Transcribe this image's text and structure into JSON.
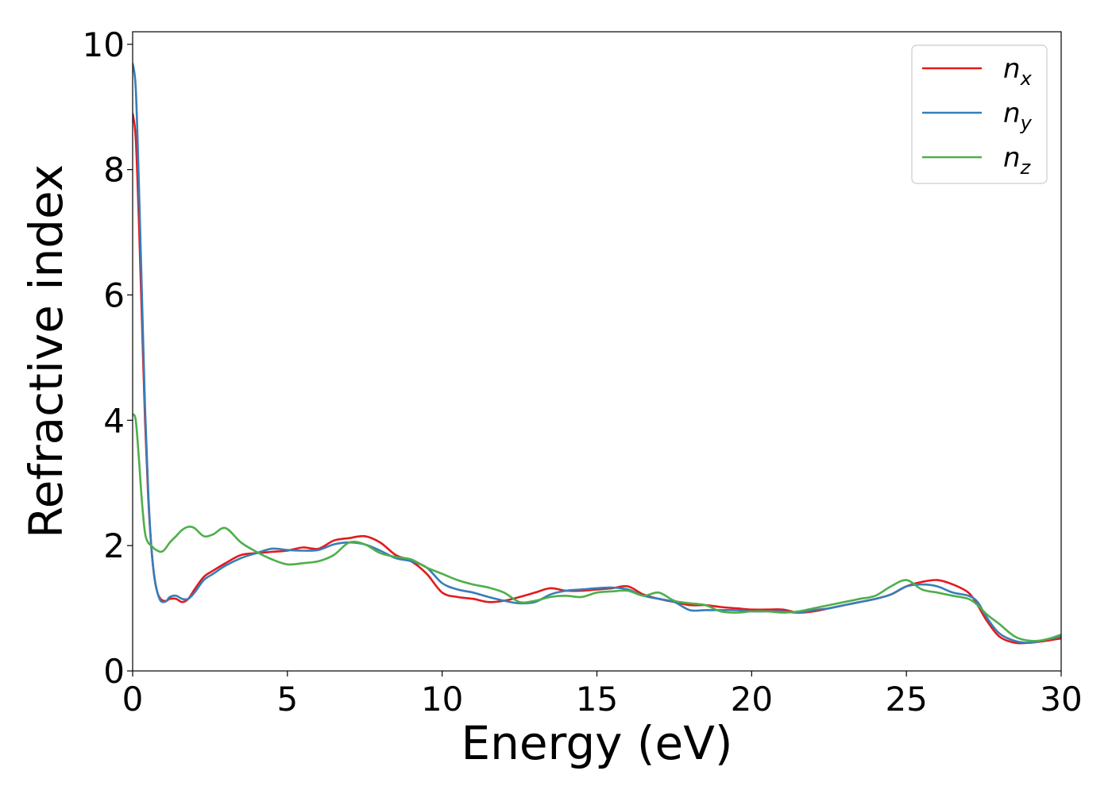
{
  "chart_data": {
    "type": "line",
    "title": "",
    "xlabel": "Energy (eV)",
    "ylabel": "Refractive index",
    "xlim": [
      0,
      30
    ],
    "ylim": [
      0,
      10.2
    ],
    "xticks": [
      "0",
      "5",
      "10",
      "15",
      "20",
      "25",
      "30"
    ],
    "yticks": [
      "0",
      "2",
      "4",
      "6",
      "8",
      "10"
    ],
    "grid": false,
    "legend_position": "top-right",
    "series": [
      {
        "name": "n",
        "subscript": "x",
        "color": "#e41a1c",
        "x": [
          0,
          0.1,
          0.2,
          0.3,
          0.4,
          0.5,
          0.6,
          0.7,
          0.8,
          0.9,
          1.0,
          1.1,
          1.2,
          1.4,
          1.6,
          1.8,
          2.0,
          2.3,
          2.6,
          3.0,
          3.5,
          4.0,
          4.5,
          5.0,
          5.5,
          6.0,
          6.5,
          7.0,
          7.5,
          8.0,
          8.5,
          9.0,
          9.5,
          10.0,
          10.5,
          11.0,
          11.5,
          12.0,
          12.5,
          13.0,
          13.5,
          14.0,
          14.5,
          15.0,
          15.5,
          16.0,
          16.5,
          17.0,
          17.5,
          18.0,
          18.5,
          19.0,
          19.5,
          20.0,
          20.5,
          21.0,
          21.5,
          22.0,
          22.5,
          23.0,
          23.5,
          24.0,
          24.5,
          25.0,
          25.5,
          26.0,
          26.5,
          27.0,
          27.3,
          27.6,
          28.0,
          28.5,
          29.0,
          29.5,
          30.0
        ],
        "values": [
          8.9,
          8.5,
          7.2,
          5.6,
          4.0,
          2.8,
          2.0,
          1.5,
          1.25,
          1.15,
          1.12,
          1.12,
          1.15,
          1.15,
          1.1,
          1.15,
          1.3,
          1.5,
          1.6,
          1.72,
          1.85,
          1.88,
          1.9,
          1.92,
          1.97,
          1.95,
          2.08,
          2.12,
          2.15,
          2.05,
          1.85,
          1.75,
          1.55,
          1.25,
          1.18,
          1.15,
          1.1,
          1.12,
          1.18,
          1.25,
          1.32,
          1.28,
          1.28,
          1.3,
          1.32,
          1.35,
          1.22,
          1.15,
          1.1,
          1.05,
          1.05,
          1.02,
          1.0,
          0.98,
          0.98,
          0.98,
          0.93,
          0.95,
          1.0,
          1.05,
          1.1,
          1.15,
          1.22,
          1.35,
          1.42,
          1.45,
          1.38,
          1.25,
          1.05,
          0.8,
          0.55,
          0.45,
          0.45,
          0.48,
          0.52
        ]
      },
      {
        "name": "n",
        "subscript": "y",
        "color": "#377eb8",
        "x": [
          0,
          0.1,
          0.2,
          0.3,
          0.4,
          0.5,
          0.6,
          0.7,
          0.8,
          0.9,
          1.0,
          1.1,
          1.2,
          1.4,
          1.6,
          1.8,
          2.0,
          2.3,
          2.6,
          3.0,
          3.5,
          4.0,
          4.5,
          5.0,
          5.5,
          6.0,
          6.5,
          7.0,
          7.5,
          8.0,
          8.5,
          9.0,
          9.5,
          10.0,
          10.5,
          11.0,
          11.5,
          12.0,
          12.5,
          13.0,
          13.5,
          14.0,
          14.5,
          15.0,
          15.5,
          16.0,
          16.5,
          17.0,
          17.5,
          18.0,
          18.5,
          19.0,
          19.5,
          20.0,
          20.5,
          21.0,
          21.5,
          22.0,
          22.5,
          23.0,
          23.5,
          24.0,
          24.5,
          25.0,
          25.5,
          26.0,
          26.5,
          27.0,
          27.3,
          27.6,
          28.0,
          28.5,
          29.0,
          29.5,
          30.0
        ],
        "values": [
          9.7,
          9.3,
          7.8,
          6.0,
          4.2,
          2.9,
          2.0,
          1.5,
          1.25,
          1.12,
          1.1,
          1.12,
          1.18,
          1.2,
          1.15,
          1.15,
          1.25,
          1.45,
          1.55,
          1.68,
          1.8,
          1.88,
          1.95,
          1.93,
          1.92,
          1.93,
          2.02,
          2.05,
          2.02,
          1.92,
          1.8,
          1.75,
          1.65,
          1.4,
          1.3,
          1.25,
          1.18,
          1.12,
          1.08,
          1.1,
          1.22,
          1.28,
          1.3,
          1.32,
          1.33,
          1.3,
          1.2,
          1.15,
          1.1,
          0.97,
          0.97,
          0.97,
          0.97,
          0.95,
          0.95,
          0.95,
          0.93,
          0.97,
          1.0,
          1.05,
          1.1,
          1.15,
          1.22,
          1.35,
          1.38,
          1.35,
          1.25,
          1.2,
          1.1,
          0.85,
          0.6,
          0.48,
          0.45,
          0.5,
          0.55
        ]
      },
      {
        "name": "n",
        "subscript": "z",
        "color": "#4daf4a",
        "x": [
          0,
          0.1,
          0.2,
          0.3,
          0.4,
          0.5,
          0.6,
          0.7,
          0.8,
          0.9,
          1.0,
          1.1,
          1.2,
          1.4,
          1.6,
          1.8,
          2.0,
          2.3,
          2.6,
          3.0,
          3.5,
          4.0,
          4.5,
          5.0,
          5.5,
          6.0,
          6.5,
          7.0,
          7.5,
          8.0,
          8.5,
          9.0,
          9.5,
          10.0,
          10.5,
          11.0,
          11.5,
          12.0,
          12.5,
          13.0,
          13.5,
          14.0,
          14.5,
          15.0,
          15.5,
          16.0,
          16.5,
          17.0,
          17.5,
          18.0,
          18.5,
          19.0,
          19.5,
          20.0,
          20.5,
          21.0,
          21.5,
          22.0,
          22.5,
          23.0,
          23.5,
          24.0,
          24.5,
          25.0,
          25.5,
          26.0,
          26.5,
          27.0,
          27.3,
          27.6,
          28.0,
          28.5,
          29.0,
          29.5,
          30.0
        ],
        "values": [
          4.1,
          4.0,
          3.4,
          2.7,
          2.2,
          2.05,
          2.0,
          1.95,
          1.92,
          1.9,
          1.92,
          1.98,
          2.05,
          2.15,
          2.25,
          2.3,
          2.28,
          2.15,
          2.18,
          2.28,
          2.05,
          1.9,
          1.78,
          1.7,
          1.72,
          1.75,
          1.85,
          2.05,
          2.02,
          1.88,
          1.82,
          1.78,
          1.65,
          1.55,
          1.45,
          1.38,
          1.33,
          1.25,
          1.1,
          1.12,
          1.18,
          1.2,
          1.18,
          1.25,
          1.27,
          1.28,
          1.2,
          1.25,
          1.12,
          1.08,
          1.05,
          0.95,
          0.93,
          0.95,
          0.95,
          0.93,
          0.95,
          1.0,
          1.05,
          1.1,
          1.15,
          1.2,
          1.35,
          1.45,
          1.3,
          1.25,
          1.2,
          1.15,
          1.05,
          0.9,
          0.75,
          0.55,
          0.48,
          0.5,
          0.58
        ]
      }
    ]
  }
}
